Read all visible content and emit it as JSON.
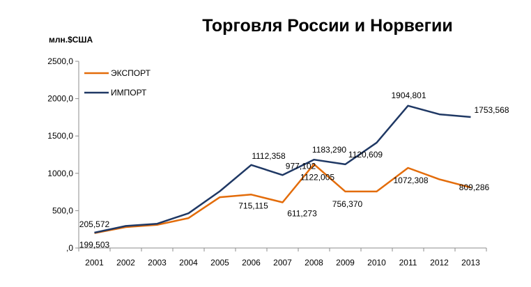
{
  "chart_data": {
    "type": "line",
    "title": "Торговля России и Норвегии",
    "ylabel": "млн.$США",
    "xlabel": "",
    "categories": [
      "2001",
      "2002",
      "2003",
      "2004",
      "2005",
      "2006",
      "2007",
      "2008",
      "2009",
      "2010",
      "2011",
      "2012",
      "2013"
    ],
    "ylim": [
      0,
      2500
    ],
    "y_ticks": [
      0,
      500,
      1000,
      1500,
      2000,
      2500
    ],
    "y_tick_labels": [
      ",0",
      "500,0",
      "1000,0",
      "1500,0",
      "2000,0",
      "2500,0"
    ],
    "grid": false,
    "legend_position": "top-left",
    "series": [
      {
        "name": "ЭКСПОРТ",
        "color": "#E36C0A",
        "values": [
          199.503,
          280,
          310,
          400,
          680,
          715.115,
          611.273,
          1122.005,
          756.37,
          756.37,
          1072.308,
          920,
          809.286
        ],
        "labels": {
          "0": "199,503",
          "5": "715,115",
          "6": "611,273",
          "7": "1122,005",
          "8": "756,370",
          "10": "1072,308",
          "12": "809,286"
        }
      },
      {
        "name": "ИМПОРТ",
        "color": "#1F3864",
        "values": [
          205.572,
          295,
          325,
          465,
          760,
          1112.358,
          977.102,
          1183.29,
          1120.609,
          1410,
          1904.801,
          1790,
          1753.568
        ],
        "labels": {
          "0": "205,572",
          "5": "1112,358",
          "6": "977,102",
          "7": "1183,290",
          "8": "1120,609",
          "10": "1904,801",
          "12": "1753,568"
        }
      }
    ]
  }
}
